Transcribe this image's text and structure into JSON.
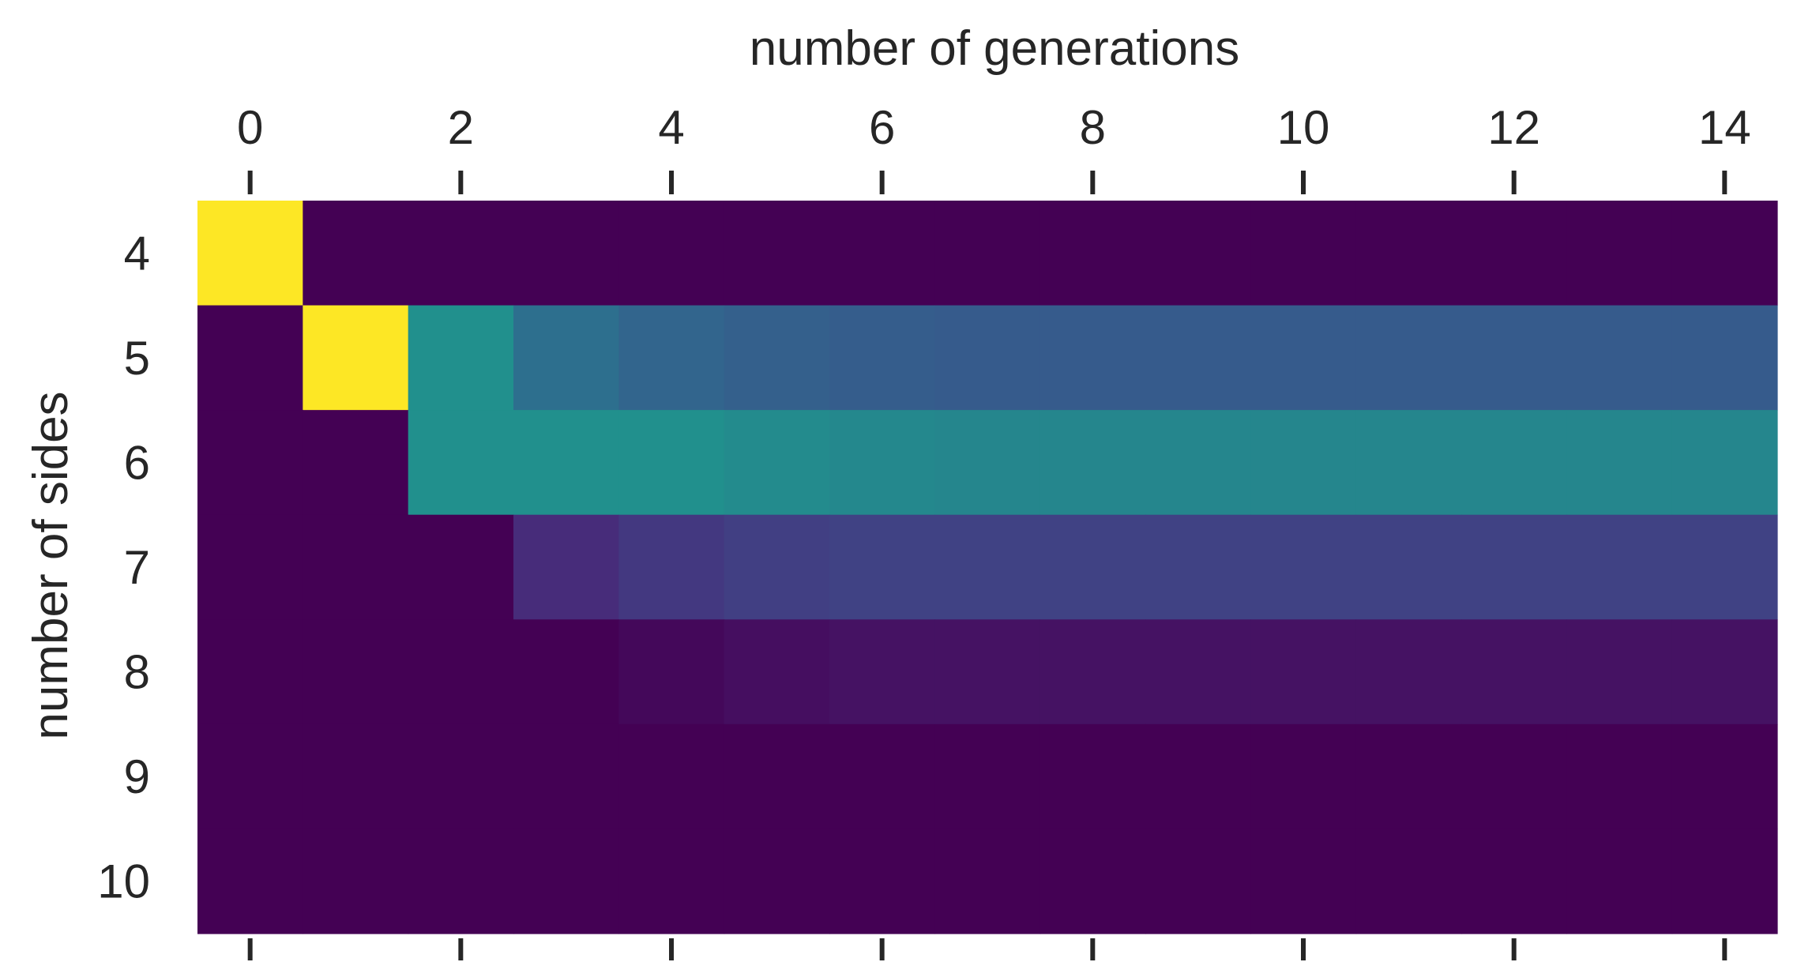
{
  "chart_data": {
    "type": "heatmap",
    "title": "",
    "xlabel": "number of generations",
    "ylabel": "number of sides",
    "x_values": [
      0,
      1,
      2,
      3,
      4,
      5,
      6,
      7,
      8,
      9,
      10,
      11,
      12,
      13,
      14
    ],
    "x_tick_labels": [
      "0",
      "2",
      "4",
      "6",
      "8",
      "10",
      "12",
      "14"
    ],
    "x_tick_values": [
      0,
      2,
      4,
      6,
      8,
      10,
      12,
      14
    ],
    "y_tick_labels": [
      "4",
      "5",
      "6",
      "7",
      "8",
      "9",
      "10"
    ],
    "x_axis_position": "top",
    "colormap": "viridis",
    "value_range": [
      0,
      1
    ],
    "grid": false,
    "legend": "none",
    "rows": [
      {
        "sides": "4",
        "values": [
          1.0,
          0.0,
          0.0,
          0.0,
          0.0,
          0.0,
          0.0,
          0.0,
          0.0,
          0.0,
          0.0,
          0.0,
          0.0,
          0.0,
          0.0
        ]
      },
      {
        "sides": "5",
        "values": [
          0.0,
          1.0,
          0.5,
          0.37,
          0.33,
          0.31,
          0.3,
          0.29,
          0.29,
          0.29,
          0.29,
          0.29,
          0.29,
          0.29,
          0.29
        ]
      },
      {
        "sides": "6",
        "values": [
          0.0,
          0.0,
          0.5,
          0.5,
          0.5,
          0.48,
          0.47,
          0.46,
          0.46,
          0.46,
          0.46,
          0.46,
          0.46,
          0.46,
          0.46
        ]
      },
      {
        "sides": "7",
        "values": [
          0.0,
          0.0,
          0.0,
          0.13,
          0.17,
          0.19,
          0.2,
          0.2,
          0.2,
          0.2,
          0.2,
          0.2,
          0.2,
          0.2,
          0.2
        ]
      },
      {
        "sides": "8",
        "values": [
          0.0,
          0.0,
          0.0,
          0.0,
          0.02,
          0.04,
          0.05,
          0.05,
          0.05,
          0.05,
          0.05,
          0.05,
          0.05,
          0.05,
          0.05
        ]
      },
      {
        "sides": "9",
        "values": [
          0.0,
          0.0,
          0.0,
          0.0,
          0.0,
          0.0,
          0.0,
          0.0,
          0.0,
          0.0,
          0.0,
          0.0,
          0.0,
          0.0,
          0.0
        ]
      },
      {
        "sides": "10",
        "values": [
          0.0,
          0.0,
          0.0,
          0.0,
          0.0,
          0.0,
          0.0,
          0.0,
          0.0,
          0.0,
          0.0,
          0.0,
          0.0,
          0.0,
          0.0
        ]
      }
    ]
  }
}
